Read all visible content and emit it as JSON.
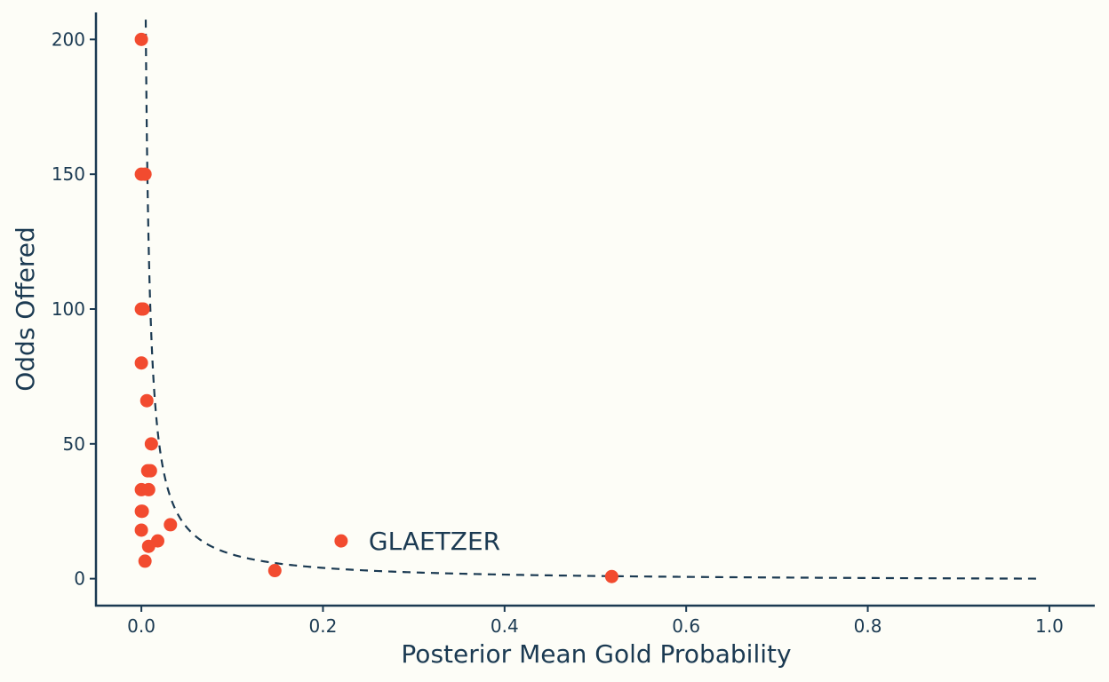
{
  "chart_data": {
    "type": "scatter",
    "title": "",
    "xlabel": "Posterior Mean Gold Probability",
    "ylabel": "Odds Offered",
    "xlim": [
      -0.05,
      1.05
    ],
    "ylim": [
      -10,
      210
    ],
    "x_ticks": [
      0.0,
      0.2,
      0.4,
      0.6,
      0.8,
      1.0
    ],
    "x_tick_labels": [
      "0.0",
      "0.2",
      "0.4",
      "0.6",
      "0.8",
      "1.0"
    ],
    "y_ticks": [
      0,
      50,
      100,
      150,
      200
    ],
    "y_tick_labels": [
      "0",
      "50",
      "100",
      "150",
      "200"
    ],
    "grid": false,
    "legend": "none",
    "points": [
      {
        "x": 0.0,
        "y": 200
      },
      {
        "x": 0.0,
        "y": 150
      },
      {
        "x": 0.004,
        "y": 150
      },
      {
        "x": 0.0,
        "y": 100
      },
      {
        "x": 0.002,
        "y": 100
      },
      {
        "x": 0.0,
        "y": 80
      },
      {
        "x": 0.006,
        "y": 66
      },
      {
        "x": 0.011,
        "y": 50
      },
      {
        "x": 0.007,
        "y": 40
      },
      {
        "x": 0.01,
        "y": 40
      },
      {
        "x": 0.0,
        "y": 33
      },
      {
        "x": 0.008,
        "y": 33
      },
      {
        "x": 0.0,
        "y": 25
      },
      {
        "x": 0.001,
        "y": 25
      },
      {
        "x": 0.0,
        "y": 18
      },
      {
        "x": 0.032,
        "y": 20
      },
      {
        "x": 0.018,
        "y": 14
      },
      {
        "x": 0.008,
        "y": 12
      },
      {
        "x": 0.004,
        "y": 6.5
      },
      {
        "x": 0.147,
        "y": 3
      },
      {
        "x": 0.22,
        "y": 14
      },
      {
        "x": 0.518,
        "y": 0.8
      }
    ],
    "reference_curve": {
      "formula": "1/p - 1",
      "x_from": 0.0048,
      "x_to": 0.99,
      "style": "dashed"
    },
    "annotations": [
      {
        "text": "GLAETZER",
        "x": 0.22,
        "y": 14
      }
    ],
    "colors": {
      "points": "#f24b2f",
      "curve": "#1b3a52",
      "axis": "#1b3a52",
      "text": "#1b3a52",
      "background": "#fdfdf7"
    }
  }
}
